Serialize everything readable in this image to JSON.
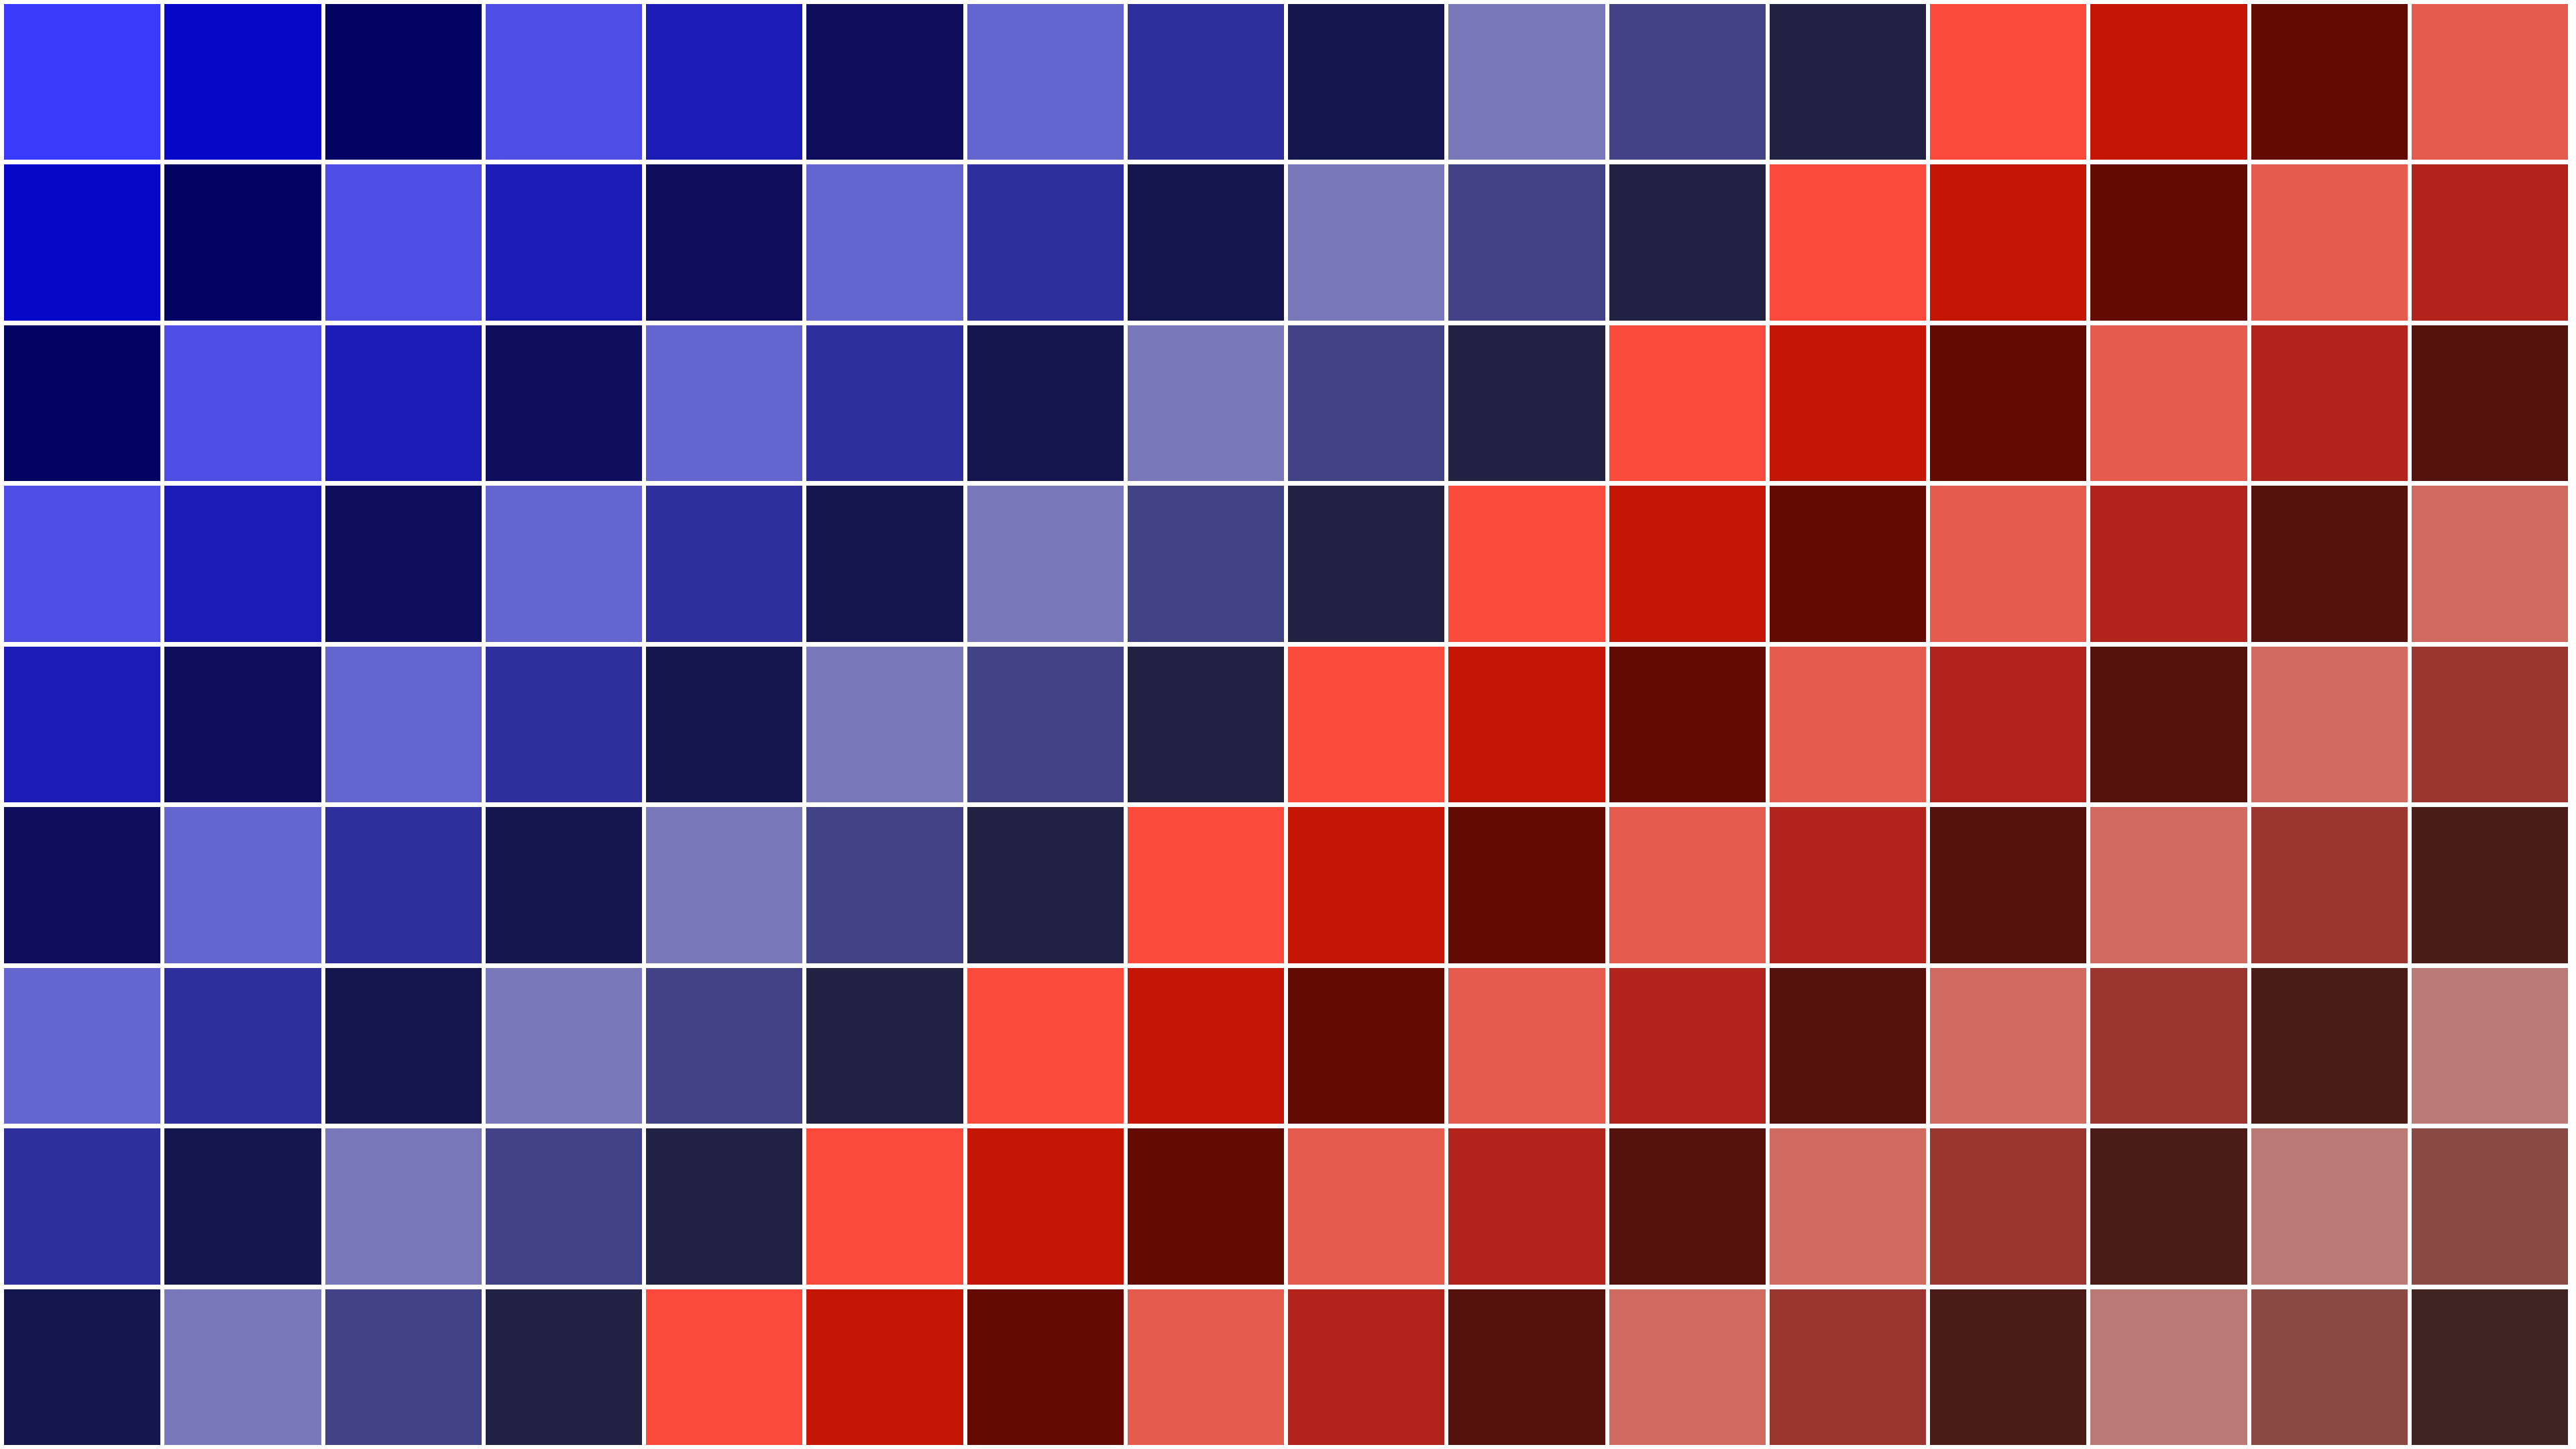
{
  "palette": [
    "#3a3afc",
    "#0707c9",
    "#030361",
    "#4e4ee5",
    "#1b1bb5",
    "#0e0e5c",
    "#6565d0",
    "#2e2e9d",
    "#16164f",
    "#7878bb",
    "#424286",
    "#212142",
    "#fb4a3b",
    "#c51505",
    "#630a03",
    "#e55b4d",
    "#b0241b",
    "#55120d",
    "#d16a61",
    "#9b352f",
    "#4a1b17",
    "#bc7a76",
    "#8b4944",
    "#3f2421"
  ],
  "grid": {
    "rows": 9,
    "columns": 16,
    "diagonal_step": 1
  }
}
